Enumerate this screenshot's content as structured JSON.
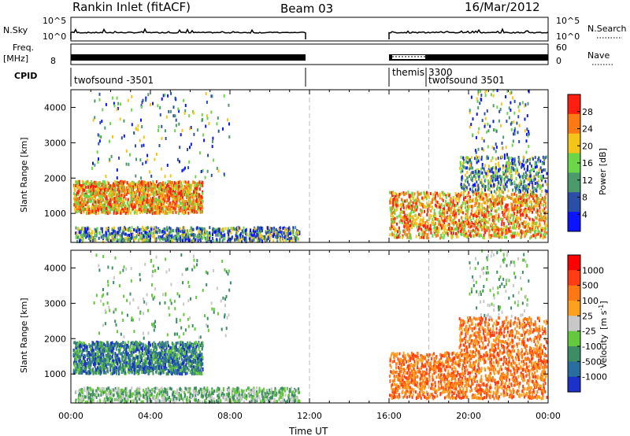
{
  "header": {
    "station": "Rankin Inlet (fitACF)",
    "beam": "Beam 03",
    "date": "16/Mar/2012"
  },
  "summary": {
    "nsky_label": "N.Sky",
    "nsky_ticks": [
      "10^5",
      "10^0"
    ],
    "nsearch_label": "N.Search",
    "nsearch_ticks": [
      "10^5",
      "10^0"
    ],
    "freq_label": "Freq.",
    "freq_unit": "[MHz]",
    "freq_ticks": [
      "8"
    ],
    "nave_label": "Nave",
    "nave_ticks": [
      "60",
      "0"
    ],
    "cpid_label": "CPID",
    "cpid_entries": [
      "twofsound -3501",
      "themis",
      "3300",
      "twofsound 3501"
    ]
  },
  "chart_data": [
    {
      "type": "heatmap",
      "title": "",
      "xlabel": "",
      "ylabel": "Slant Range [km]",
      "x_tick_labels": [
        "00:00",
        "04:00",
        "08:00",
        "12:00",
        "16:00",
        "20:00",
        "00:00"
      ],
      "y_ticks": [
        1000,
        2000,
        3000,
        4000
      ],
      "ylim": [
        180,
        4500
      ],
      "xlim_hours": [
        0,
        24
      ],
      "colorbar": {
        "label": "Power [dB]",
        "ticks": [
          "4",
          "8",
          "12",
          "16",
          "20",
          "24",
          "28"
        ],
        "colors": [
          "#0a14ff",
          "#2b4ea6",
          "#4b9a6b",
          "#6bd648",
          "#f5c418",
          "#ff7a14",
          "#ff1e10"
        ]
      },
      "data_gaps_hours": [
        [
          11.9,
          16.0
        ]
      ],
      "grid": "dashed vertical lines at 12:00 and 18:00"
    },
    {
      "type": "heatmap",
      "title": "",
      "xlabel": "Time UT",
      "ylabel": "Slant Range [km]",
      "x_tick_labels": [
        "00:00",
        "04:00",
        "08:00",
        "12:00",
        "16:00",
        "20:00",
        "00:00"
      ],
      "y_ticks": [
        1000,
        2000,
        3000,
        4000
      ],
      "ylim": [
        180,
        4500
      ],
      "xlim_hours": [
        0,
        24
      ],
      "colorbar": {
        "label": "Velocity [m s-1]",
        "label_main": "Velocity",
        "label_unit": "[m s",
        "label_exp": "-1",
        "label_close": "]",
        "ticks": [
          "1000",
          "500",
          "100",
          "25",
          "-25",
          "-100",
          "-500",
          "-1000"
        ],
        "colors": [
          "#1a32c8",
          "#2a6ea0",
          "#3c8c64",
          "#64c83c",
          "#c8c8c8",
          "#ffa01e",
          "#ff7814",
          "#ff3c14",
          "#ff0000"
        ]
      },
      "data_gaps_hours": [
        [
          11.9,
          16.0
        ]
      ],
      "grid": "dashed vertical lines at 12:00 and 18:00"
    }
  ]
}
